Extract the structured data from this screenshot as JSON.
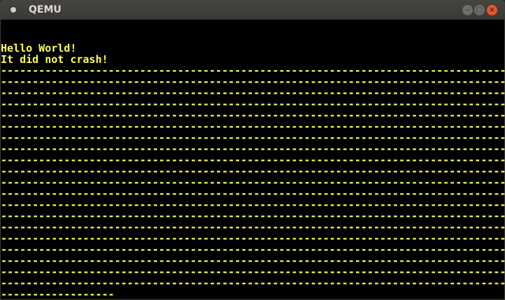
{
  "window": {
    "title": "QEMU",
    "icon": "qemu-app-icon",
    "buttons": {
      "minimize": "–",
      "maximize": "□",
      "close": "×"
    }
  },
  "screen": {
    "text_color": "#ffff55",
    "lines": [
      "",
      "",
      "Hello World!",
      "It did not crash!",
      "--------------------------------------------------------------------------------",
      "--------------------------------------------------------------------------------",
      "--------------------------------------------------------------------------------",
      "--------------------------------------------------------------------------------",
      "--------------------------------------------------------------------------------",
      "--------------------------------------------------------------------------------",
      "--------------------------------------------------------------------------------",
      "--------------------------------------------------------------------------------",
      "--------------------------------------------------------------------------------",
      "--------------------------------------------------------------------------------",
      "--------------------------------------------------------------------------------",
      "--------------------------------------------------------------------------------",
      "--------------------------------------------------------------------------------",
      "--------------------------------------------------------------------------------",
      "--------------------------------------------------------------------------------",
      "--------------------------------------------------------------------------------",
      "--------------------------------------------------------------------------------",
      "--------------------------------------------------------------------------------",
      "--------------------------------------------------------------------------------",
      "--------------------------------------------------------------------------------",
      "------------------"
    ]
  }
}
